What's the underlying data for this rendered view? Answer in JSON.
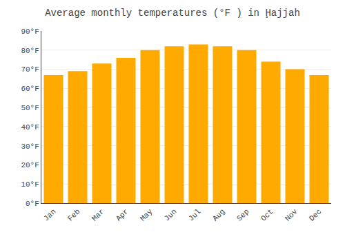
{
  "chart_data": {
    "type": "bar",
    "title": "Average monthly temperatures (°F ) in Ḩajjah",
    "categories": [
      "Jan",
      "Feb",
      "Mar",
      "Apr",
      "May",
      "Jun",
      "Jul",
      "Aug",
      "Sep",
      "Oct",
      "Nov",
      "Dec"
    ],
    "values": [
      67,
      69,
      73,
      76,
      80,
      82,
      83,
      82,
      80,
      74,
      70,
      67
    ],
    "color": "#FFAA00",
    "ylim": [
      0,
      90
    ],
    "yticks": [
      {
        "value": 0,
        "label": "0°F"
      },
      {
        "value": 10,
        "label": "10°F"
      },
      {
        "value": 20,
        "label": "20°F"
      },
      {
        "value": 30,
        "label": "30°F"
      },
      {
        "value": 40,
        "label": "40°F"
      },
      {
        "value": 50,
        "label": "50°F"
      },
      {
        "value": 60,
        "label": "60°F"
      },
      {
        "value": 70,
        "label": "70°F"
      },
      {
        "value": 80,
        "label": "80°F"
      },
      {
        "value": 90,
        "label": "90°F"
      }
    ],
    "grid": true
  }
}
